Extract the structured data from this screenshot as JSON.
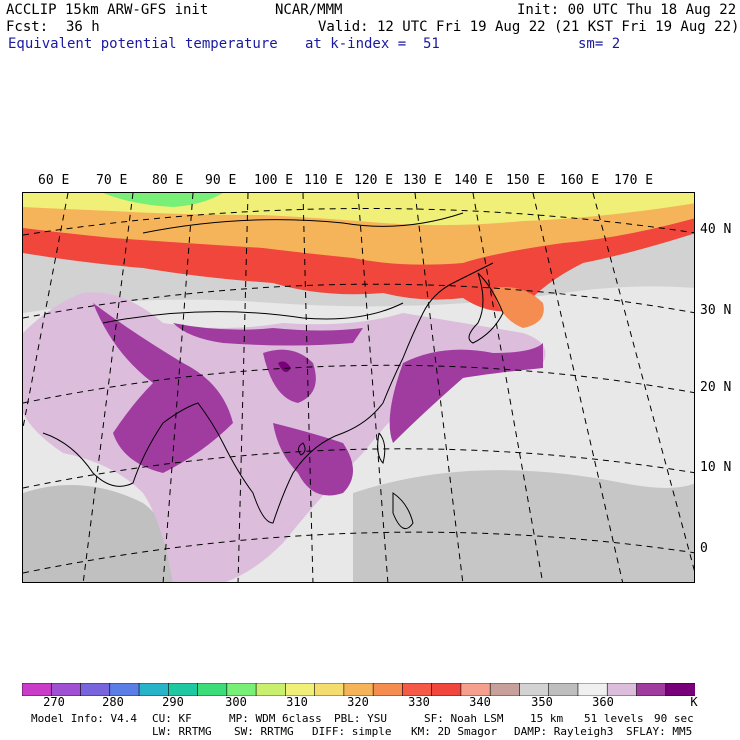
{
  "header": {
    "model_line": "ACCLIP 15km ARW-GFS init",
    "institution": "NCAR/MMM",
    "init": "Init: 00 UTC Thu 18 Aug 22",
    "fcst_label": "Fcst:",
    "fcst_value": "36 h",
    "valid": "Valid: 12 UTC Fri 19 Aug 22 (21 KST Fri 19 Aug 22)",
    "field": "Equivalent potential temperature",
    "level": "at k-index =  51",
    "smoothing": "sm= 2"
  },
  "map": {
    "longitude_labels": [
      "60 E",
      "70 E",
      "80 E",
      "90 E",
      "100 E",
      "110 E",
      "120 E",
      "130 E",
      "140 E",
      "150 E",
      "160 E",
      "170 E"
    ],
    "latitude_labels": [
      "40 N",
      "30 N",
      "20 N",
      "10 N",
      "0"
    ]
  },
  "colorbar": {
    "colors": [
      "#c83cc8",
      "#a050d2",
      "#7864dc",
      "#5a7ee6",
      "#28b4c8",
      "#1ec8a0",
      "#3cdc78",
      "#78f078",
      "#c8f06e",
      "#f0f078",
      "#f5dc6e",
      "#f5b45a",
      "#f58c50",
      "#f55a46",
      "#f0463c",
      "#f5a08c",
      "#c8a09b",
      "#d2d2d2",
      "#bebebe",
      "#f0f0f0",
      "#dcbedc",
      "#a03ca0",
      "#780078"
    ],
    "labels": [
      "270",
      "280",
      "290",
      "300",
      "310",
      "320",
      "330",
      "340",
      "350",
      "360"
    ],
    "unit": "K"
  },
  "model_info": {
    "line1": [
      "Model Info: V4.4",
      "CU: KF",
      "MP: WDM 6class",
      "PBL: YSU",
      "SF: Noah LSM",
      "15 km",
      "51 levels",
      "90 sec"
    ],
    "line2": [
      "LW: RRTMG",
      "SW: RRTMG",
      "DIFF: simple",
      "KM: 2D Smagor",
      "DAMP: Rayleigh3",
      "SFLAY: MM5"
    ]
  }
}
